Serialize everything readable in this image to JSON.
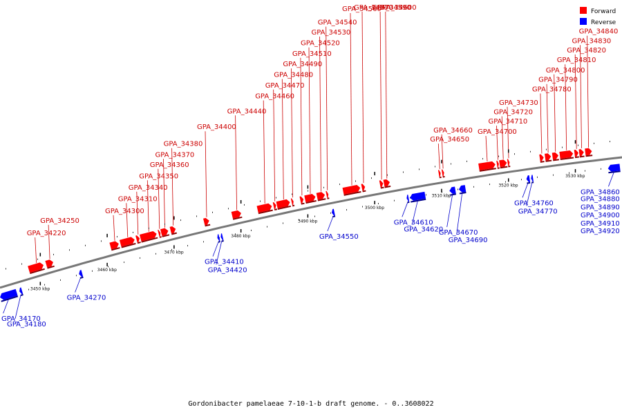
{
  "caption": "Gordonibacter pamelaeae 7-10-1-b draft genome. - 0..3608022",
  "legend": [
    {
      "label": "Forward",
      "color": "#ff0000"
    },
    {
      "label": "Reverse",
      "color": "#0000ff"
    }
  ],
  "colors": {
    "forward": "#ff0000",
    "reverse": "#0000ff",
    "backbone": "#777777",
    "line_fwd": "#cc0000",
    "line_rev": "#0000cc"
  },
  "scale": {
    "start_kbp": 3444,
    "end_kbp": 3537
  },
  "ticks": [
    {
      "kbp": 3450,
      "label": "3450 kbp"
    },
    {
      "kbp": 3460,
      "label": "3460 kbp"
    },
    {
      "kbp": 3470,
      "label": "3470 kbp"
    },
    {
      "kbp": 3480,
      "label": "3480 kbp"
    },
    {
      "kbp": 3490,
      "label": "3490 kbp"
    },
    {
      "kbp": 3500,
      "label": "3500 kbp"
    },
    {
      "kbp": 3510,
      "label": "3510 kbp"
    },
    {
      "kbp": 3520,
      "label": "3520 kbp"
    },
    {
      "kbp": 3530,
      "label": "3530 kbp"
    }
  ],
  "genes": [
    {
      "name": "GPA_34170",
      "strand": "reverse",
      "start": 3444.0,
      "end": 3446.6
    },
    {
      "name": "GPA_34180",
      "strand": "reverse",
      "start": 3446.9,
      "end": 3447.3
    },
    {
      "name": "GPA_34220",
      "strand": "forward",
      "start": 3448.3,
      "end": 3450.6
    },
    {
      "name": "GPA_34250",
      "strand": "forward",
      "start": 3450.9,
      "end": 3452.0
    },
    {
      "name": "GPA_34270",
      "strand": "reverse",
      "start": 3455.8,
      "end": 3456.3
    },
    {
      "name": "GPA_34300",
      "strand": "forward",
      "start": 3460.5,
      "end": 3461.8
    },
    {
      "name": "GPA_34310",
      "strand": "forward",
      "start": 3462.0,
      "end": 3464.2
    },
    {
      "name": "GPA_34340",
      "strand": "forward",
      "start": 3464.4,
      "end": 3464.9
    },
    {
      "name": "GPA_34350",
      "strand": "forward",
      "start": 3465.0,
      "end": 3467.5
    },
    {
      "name": "GPA_34360",
      "strand": "forward",
      "start": 3467.7,
      "end": 3468.0
    },
    {
      "name": "GPA_34370",
      "strand": "forward",
      "start": 3468.1,
      "end": 3469.2
    },
    {
      "name": "GPA_34380",
      "strand": "forward",
      "start": 3469.5,
      "end": 3470.3
    },
    {
      "name": "GPA_34400",
      "strand": "forward",
      "start": 3474.5,
      "end": 3475.3
    },
    {
      "name": "GPA_34410",
      "strand": "reverse",
      "start": 3476.5,
      "end": 3476.8
    },
    {
      "name": "GPA_34420",
      "strand": "reverse",
      "start": 3477.0,
      "end": 3477.3
    },
    {
      "name": "GPA_34440",
      "strand": "forward",
      "start": 3478.7,
      "end": 3480.1
    },
    {
      "name": "GPA_34460",
      "strand": "forward",
      "start": 3482.5,
      "end": 3484.7
    },
    {
      "name": "GPA_34470",
      "strand": "forward",
      "start": 3484.9,
      "end": 3485.3
    },
    {
      "name": "GPA_34480",
      "strand": "forward",
      "start": 3485.4,
      "end": 3487.4
    },
    {
      "name": "GPA_34490",
      "strand": "forward",
      "start": 3487.6,
      "end": 3487.9
    },
    {
      "name": "GPA_34510",
      "strand": "forward",
      "start": 3488.9,
      "end": 3489.4
    },
    {
      "name": "GPA_34520",
      "strand": "forward",
      "start": 3489.6,
      "end": 3491.2
    },
    {
      "name": "GPA_34530",
      "strand": "forward",
      "start": 3491.4,
      "end": 3492.6
    },
    {
      "name": "GPA_34540",
      "strand": "forward",
      "start": 3492.8,
      "end": 3493.1
    },
    {
      "name": "GPA_34550",
      "strand": "reverse",
      "start": 3493.6,
      "end": 3494.0
    },
    {
      "name": "GPA_34560",
      "strand": "forward",
      "start": 3495.3,
      "end": 3497.9
    },
    {
      "name": "GPA_34570",
      "strand": "forward",
      "start": 3498.1,
      "end": 3498.6
    },
    {
      "name": "GPA_34590",
      "strand": "forward",
      "start": 3500.8,
      "end": 3501.3
    },
    {
      "name": "GPA_34600",
      "strand": "forward",
      "start": 3501.4,
      "end": 3502.3
    },
    {
      "name": "GPA_34610",
      "strand": "reverse",
      "start": 3504.8,
      "end": 3505.1
    },
    {
      "name": "GPA_34620",
      "strand": "reverse",
      "start": 3505.3,
      "end": 3507.6
    },
    {
      "name": "GPA_34650",
      "strand": "forward",
      "start": 3509.6,
      "end": 3509.9
    },
    {
      "name": "GPA_34660",
      "strand": "forward",
      "start": 3510.1,
      "end": 3510.4
    },
    {
      "name": "GPA_34670",
      "strand": "reverse",
      "start": 3511.2,
      "end": 3512.1
    },
    {
      "name": "GPA_34690",
      "strand": "reverse",
      "start": 3512.6,
      "end": 3513.6
    },
    {
      "name": "GPA_34700",
      "strand": "forward",
      "start": 3515.6,
      "end": 3518.1
    },
    {
      "name": "GPA_34710",
      "strand": "forward",
      "start": 3518.3,
      "end": 3518.6
    },
    {
      "name": "GPA_34720",
      "strand": "forward",
      "start": 3518.7,
      "end": 3519.8
    },
    {
      "name": "GPA_34730",
      "strand": "forward",
      "start": 3519.9,
      "end": 3520.2
    },
    {
      "name": "GPA_34760",
      "strand": "reverse",
      "start": 3522.7,
      "end": 3523.2
    },
    {
      "name": "GPA_34770",
      "strand": "reverse",
      "start": 3523.4,
      "end": 3523.7
    },
    {
      "name": "GPA_34780",
      "strand": "forward",
      "start": 3524.7,
      "end": 3525.3
    },
    {
      "name": "GPA_34790",
      "strand": "forward",
      "start": 3525.5,
      "end": 3526.4
    },
    {
      "name": "GPA_34800",
      "strand": "forward",
      "start": 3526.6,
      "end": 3527.5
    },
    {
      "name": "GPA_34810",
      "strand": "forward",
      "start": 3527.7,
      "end": 3529.7
    },
    {
      "name": "GPA_34820",
      "strand": "forward",
      "start": 3529.9,
      "end": 3530.5
    },
    {
      "name": "GPA_34830",
      "strand": "forward",
      "start": 3530.6,
      "end": 3531.3
    },
    {
      "name": "GPA_34840",
      "strand": "forward",
      "start": 3531.5,
      "end": 3532.5
    },
    {
      "name": "GPA_34860",
      "strand": "reverse",
      "start": 3534.9,
      "end": 3536.7
    },
    {
      "name": "GPA_34880",
      "strand": "reverse",
      "start": 3537.7,
      "end": 3538.7
    },
    {
      "name": "GPA_34890",
      "strand": "reverse",
      "start": 3539.2,
      "end": 3539.8
    },
    {
      "name": "GPA_34900",
      "strand": "reverse",
      "start": 3539.9,
      "end": 3541.3
    },
    {
      "name": "GPA_34910",
      "strand": "reverse",
      "start": 3541.5,
      "end": 3542.2
    },
    {
      "name": "GPA_34920",
      "strand": "reverse",
      "start": 3543.2,
      "end": 3544.6
    }
  ]
}
